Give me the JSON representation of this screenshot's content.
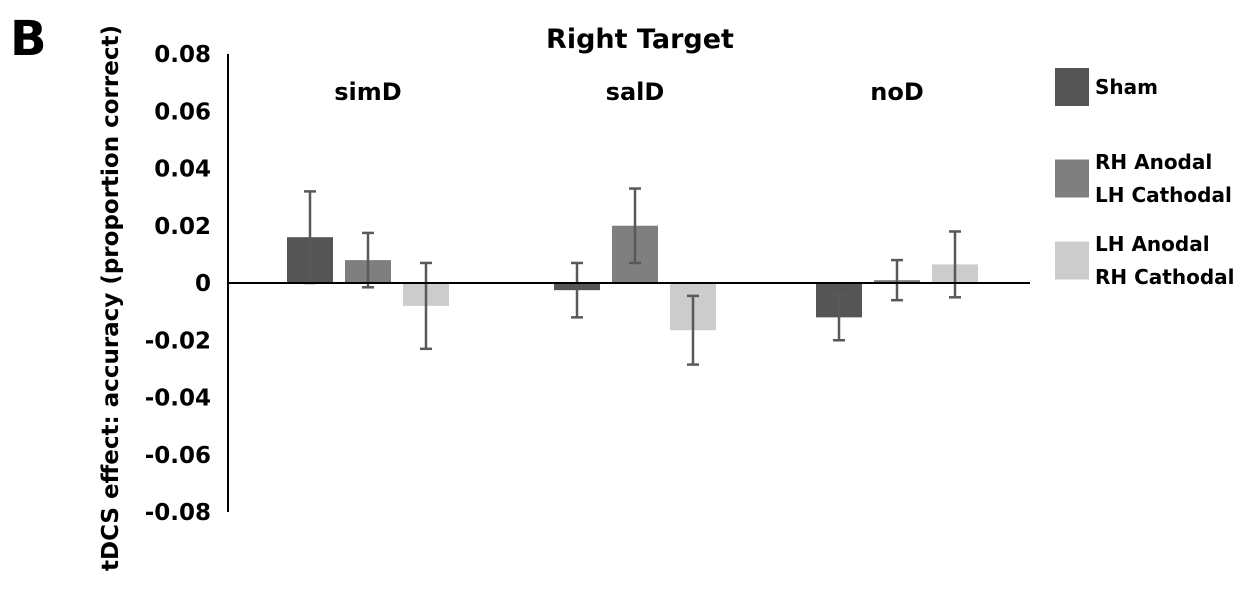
{
  "panel_label": "B",
  "chart_data": {
    "type": "bar",
    "title": "Right Target",
    "ylabel": "tDCS effect: accuracy (proportion correct)",
    "xlabel": "",
    "categories": [
      "simD",
      "salD",
      "noD"
    ],
    "ylim": [
      -0.08,
      0.08
    ],
    "yticks": [
      {
        "value": 0.08,
        "label": "0.08"
      },
      {
        "value": 0.06,
        "label": "0.06"
      },
      {
        "value": 0.04,
        "label": "0.04"
      },
      {
        "value": 0.02,
        "label": "0.02"
      },
      {
        "value": 0,
        "label": "0"
      },
      {
        "value": -0.02,
        "label": "-0.02"
      },
      {
        "value": -0.04,
        "label": "-0.04"
      },
      {
        "value": -0.06,
        "label": "-0.06"
      },
      {
        "value": -0.08,
        "label": "-0.08"
      }
    ],
    "series": [
      {
        "name": "Sham",
        "legend_lines": [
          "Sham"
        ],
        "color": "#555555",
        "values": [
          0.016,
          -0.0025,
          -0.012
        ],
        "errors": [
          0.016,
          0.0095,
          0.008
        ]
      },
      {
        "name": "RH Anodal LH Cathodal",
        "legend_lines": [
          "RH Anodal",
          "LH Cathodal"
        ],
        "color": "#7f7f7f",
        "values": [
          0.008,
          0.02,
          0.001
        ],
        "errors": [
          0.0095,
          0.013,
          0.007
        ]
      },
      {
        "name": "LH Anodal RH Cathodal",
        "legend_lines": [
          "LH Anodal",
          "RH Cathodal"
        ],
        "color": "#cccccc",
        "values": [
          -0.008,
          -0.0165,
          0.0065
        ],
        "errors": [
          0.015,
          0.012,
          0.0115
        ]
      }
    ],
    "error_bar_color": "#595959",
    "grid": false,
    "legend_position": "right"
  }
}
